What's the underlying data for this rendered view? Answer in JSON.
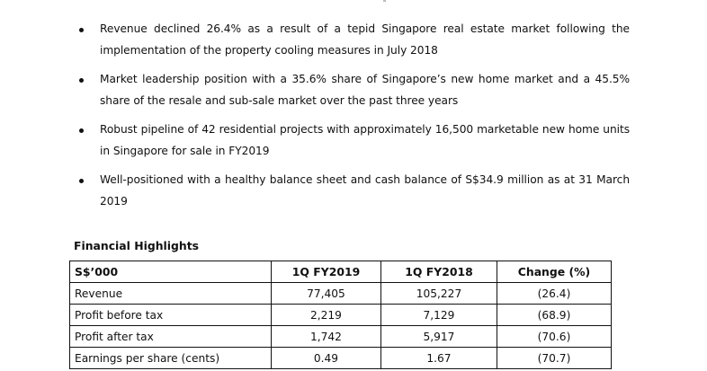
{
  "highlights": {
    "bullets": [
      {
        "text": "Revenue declined 26.4% as a result of a tepid Singapore real estate market following the implementation of the property cooling measures in July 2018"
      },
      {
        "text": "Market leadership position with a 35.6% share of Singapore’s new home market and a 45.5% share of the resale and sub-sale market over the past three years"
      },
      {
        "text": "Robust pipeline of 42 residential projects with approximately 16,500 marketable new home units in Singapore for sale in FY2019"
      },
      {
        "text": "Well-positioned with a healthy balance sheet and cash balance of S$34.9 million as at 31 March 2019"
      }
    ]
  },
  "financial_highlights": {
    "title": "Financial Highlights",
    "columns": [
      "S$’000",
      "1Q FY2019",
      "1Q FY2018",
      "Change (%)"
    ],
    "rows": [
      {
        "label": "Revenue",
        "fy2019": "77,405",
        "fy2018": "105,227",
        "change": "(26.4)"
      },
      {
        "label": "Profit before tax",
        "fy2019": "2,219",
        "fy2018": "7,129",
        "change": "(68.9)"
      },
      {
        "label": "Profit after tax",
        "fy2019": "1,742",
        "fy2018": "5,917",
        "change": "(70.6)"
      },
      {
        "label": "Earnings per share (cents)",
        "fy2019": "0.49",
        "fy2018": "1.67",
        "change": "(70.7)"
      }
    ]
  }
}
